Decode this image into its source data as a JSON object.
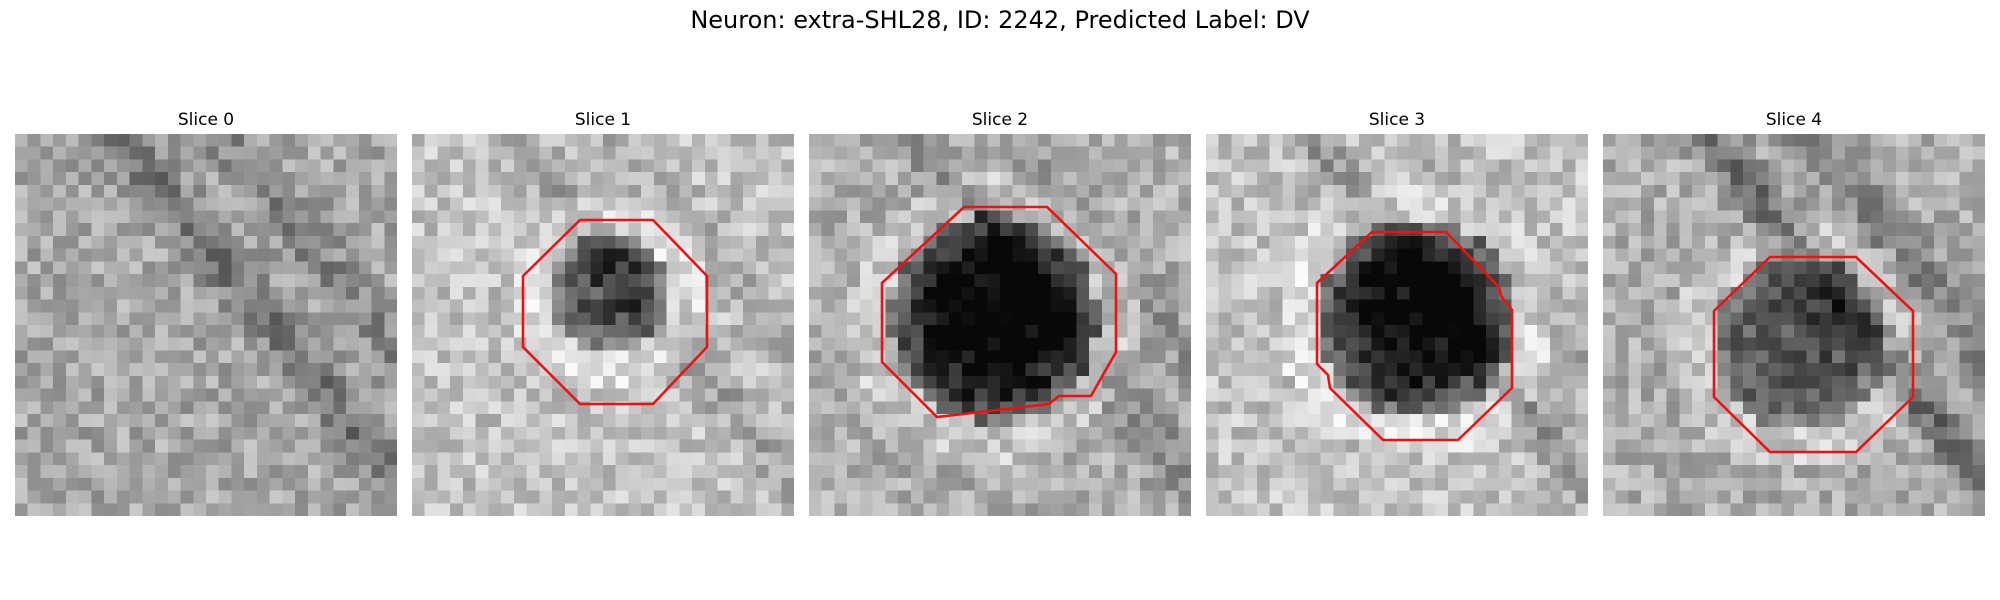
{
  "figure_title": "Neuron: extra-SHL28, ID: 2242, Predicted Label: DV",
  "slices": [
    {
      "label": "Slice 0",
      "has_contour": false
    },
    {
      "label": "Slice 1",
      "has_contour": true
    },
    {
      "label": "Slice 2",
      "has_contour": true
    },
    {
      "label": "Slice 3",
      "has_contour": true
    },
    {
      "label": "Slice 4",
      "has_contour": true
    }
  ],
  "contour_color": "#ee1111"
}
